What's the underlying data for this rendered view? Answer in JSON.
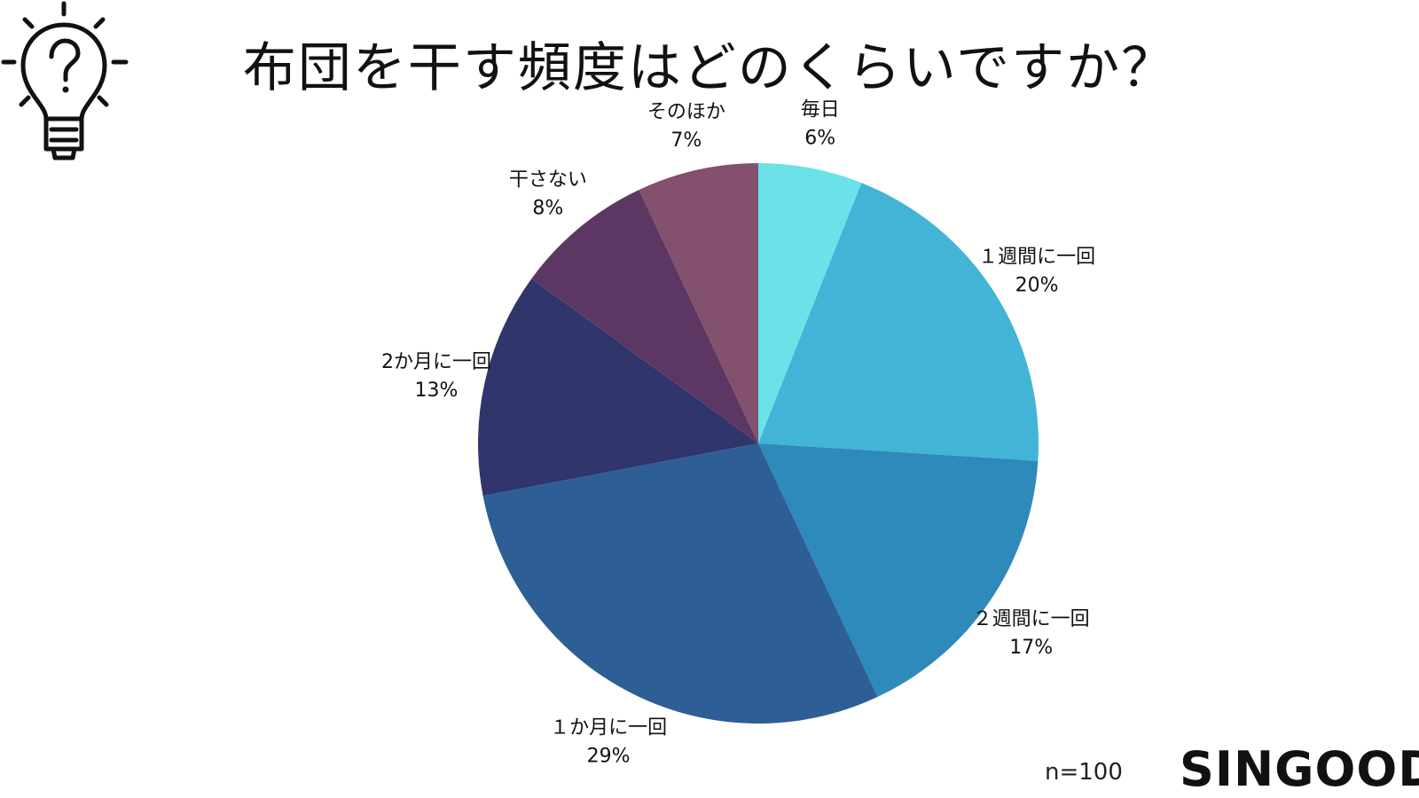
{
  "title": "布団を干す頻度はどのくらいですか？",
  "icon": "lightbulb-question-icon",
  "n_label": "n=100",
  "brand": "SINGOOD",
  "chart_data": {
    "type": "pie",
    "title": "布団を干す頻度はどのくらいですか？",
    "slices": [
      {
        "label": "毎日",
        "value": 6,
        "value_label": "6%",
        "color": "#6be2e8"
      },
      {
        "label": "１週間に一回",
        "value": 20,
        "value_label": "20%",
        "color": "#42b5d6"
      },
      {
        "label": "２週間に一回",
        "value": 17,
        "value_label": "17%",
        "color": "#2e8aba"
      },
      {
        "label": "１か月に一回",
        "value": 29,
        "value_label": "29%",
        "color": "#2e5e96"
      },
      {
        "label": "2か月に一回",
        "value": 13,
        "value_label": "13%",
        "color": "#30356b"
      },
      {
        "label": "干さない",
        "value": 8,
        "value_label": "8%",
        "color": "#5d3763"
      },
      {
        "label": "そのほか",
        "value": 7,
        "value_label": "7%",
        "color": "#83506d"
      }
    ],
    "start_angle": "top",
    "direction": "clockwise",
    "legend": "none"
  }
}
